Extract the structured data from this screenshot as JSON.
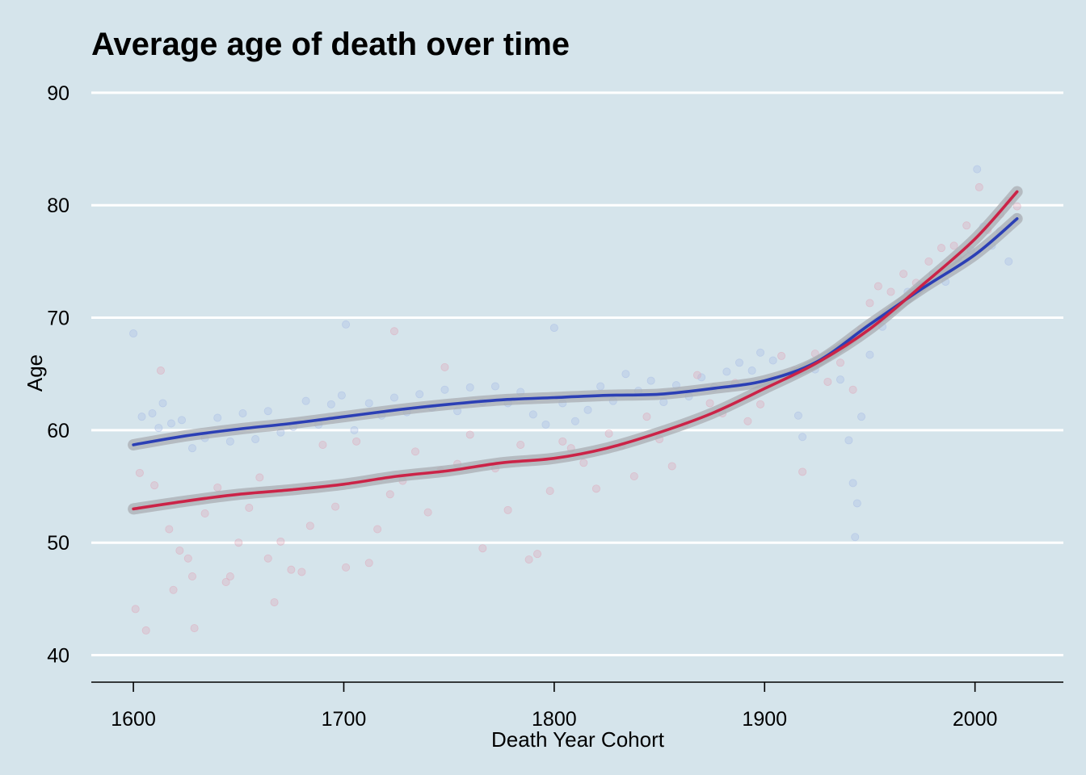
{
  "chart_data": {
    "type": "scatter",
    "title": "Average age of death over time",
    "xlabel": "Death Year Cohort",
    "ylabel": "Age",
    "xlim": [
      1580,
      2042
    ],
    "ylim": [
      37.6,
      92
    ],
    "x_ticks": [
      1600,
      1700,
      1800,
      1900,
      2000
    ],
    "y_ticks": [
      40,
      50,
      60,
      70,
      80,
      90
    ],
    "grid": "horizontal",
    "legend": "none",
    "background_color": "#d5e4eb",
    "series": [
      {
        "color": "#2b3fb5",
        "point_color": "#a9bde6",
        "smooth": [
          [
            1600,
            58.7
          ],
          [
            1625,
            59.5
          ],
          [
            1650,
            60.1
          ],
          [
            1675,
            60.6
          ],
          [
            1700,
            61.2
          ],
          [
            1725,
            61.8
          ],
          [
            1750,
            62.3
          ],
          [
            1775,
            62.7
          ],
          [
            1800,
            62.9
          ],
          [
            1825,
            63.1
          ],
          [
            1850,
            63.2
          ],
          [
            1875,
            63.7
          ],
          [
            1900,
            64.4
          ],
          [
            1925,
            66.1
          ],
          [
            1950,
            69.4
          ],
          [
            1975,
            72.6
          ],
          [
            2000,
            75.6
          ],
          [
            2020,
            78.8
          ]
        ],
        "points": [
          [
            1600,
            68.6
          ],
          [
            1604,
            61.2
          ],
          [
            1609,
            61.5
          ],
          [
            1612,
            60.2
          ],
          [
            1614,
            62.4
          ],
          [
            1618,
            60.6
          ],
          [
            1623,
            60.9
          ],
          [
            1628,
            58.4
          ],
          [
            1634,
            59.3
          ],
          [
            1640,
            61.1
          ],
          [
            1646,
            59.0
          ],
          [
            1652,
            61.5
          ],
          [
            1658,
            59.2
          ],
          [
            1664,
            61.7
          ],
          [
            1670,
            59.8
          ],
          [
            1676,
            60.3
          ],
          [
            1682,
            62.6
          ],
          [
            1688,
            60.5
          ],
          [
            1694,
            62.3
          ],
          [
            1699,
            63.1
          ],
          [
            1701,
            69.4
          ],
          [
            1705,
            60.0
          ],
          [
            1712,
            62.4
          ],
          [
            1718,
            61.3
          ],
          [
            1724,
            62.9
          ],
          [
            1730,
            61.6
          ],
          [
            1736,
            63.2
          ],
          [
            1742,
            62.0
          ],
          [
            1748,
            63.6
          ],
          [
            1754,
            61.7
          ],
          [
            1760,
            63.8
          ],
          [
            1766,
            62.5
          ],
          [
            1772,
            63.9
          ],
          [
            1778,
            62.4
          ],
          [
            1784,
            63.4
          ],
          [
            1790,
            61.4
          ],
          [
            1796,
            60.5
          ],
          [
            1800,
            69.1
          ],
          [
            1804,
            62.4
          ],
          [
            1810,
            60.8
          ],
          [
            1816,
            61.8
          ],
          [
            1822,
            63.9
          ],
          [
            1828,
            62.6
          ],
          [
            1834,
            65.0
          ],
          [
            1840,
            63.5
          ],
          [
            1846,
            64.4
          ],
          [
            1852,
            62.5
          ],
          [
            1858,
            64.0
          ],
          [
            1864,
            63.0
          ],
          [
            1870,
            64.7
          ],
          [
            1876,
            63.8
          ],
          [
            1882,
            65.2
          ],
          [
            1888,
            66.0
          ],
          [
            1894,
            65.3
          ],
          [
            1898,
            66.9
          ],
          [
            1904,
            66.2
          ],
          [
            1910,
            64.8
          ],
          [
            1916,
            61.3
          ],
          [
            1918,
            59.4
          ],
          [
            1924,
            65.4
          ],
          [
            1930,
            66.5
          ],
          [
            1936,
            64.5
          ],
          [
            1940,
            59.1
          ],
          [
            1942,
            55.3
          ],
          [
            1943,
            50.5
          ],
          [
            1944,
            53.5
          ],
          [
            1946,
            61.2
          ],
          [
            1950,
            66.7
          ],
          [
            1956,
            69.2
          ],
          [
            1962,
            70.8
          ],
          [
            1968,
            72.3
          ],
          [
            1974,
            72.9
          ],
          [
            1980,
            73.9
          ],
          [
            1986,
            73.2
          ],
          [
            1992,
            75.3
          ],
          [
            1998,
            76.0
          ],
          [
            2001,
            83.2
          ],
          [
            2004,
            78.1
          ],
          [
            2008,
            76.4
          ],
          [
            2012,
            77.7
          ],
          [
            2016,
            75.0
          ],
          [
            2020,
            78.9
          ]
        ]
      },
      {
        "color": "#cb2347",
        "point_color": "#e0a8b9",
        "smooth": [
          [
            1600,
            53.0
          ],
          [
            1625,
            53.7
          ],
          [
            1650,
            54.3
          ],
          [
            1675,
            54.7
          ],
          [
            1700,
            55.2
          ],
          [
            1725,
            55.9
          ],
          [
            1750,
            56.4
          ],
          [
            1775,
            57.1
          ],
          [
            1800,
            57.5
          ],
          [
            1825,
            58.4
          ],
          [
            1850,
            59.8
          ],
          [
            1875,
            61.5
          ],
          [
            1900,
            63.7
          ],
          [
            1925,
            66.0
          ],
          [
            1950,
            69.0
          ],
          [
            1975,
            72.9
          ],
          [
            2000,
            77.0
          ],
          [
            2020,
            81.2
          ]
        ],
        "points": [
          [
            1601,
            44.1
          ],
          [
            1603,
            56.2
          ],
          [
            1606,
            42.2
          ],
          [
            1610,
            55.1
          ],
          [
            1613,
            65.3
          ],
          [
            1617,
            51.2
          ],
          [
            1619,
            45.8
          ],
          [
            1622,
            49.3
          ],
          [
            1626,
            48.6
          ],
          [
            1628,
            47.0
          ],
          [
            1629,
            42.4
          ],
          [
            1634,
            52.6
          ],
          [
            1640,
            54.9
          ],
          [
            1644,
            46.5
          ],
          [
            1646,
            47.0
          ],
          [
            1650,
            50.0
          ],
          [
            1655,
            53.1
          ],
          [
            1660,
            55.8
          ],
          [
            1664,
            48.6
          ],
          [
            1667,
            44.7
          ],
          [
            1670,
            50.1
          ],
          [
            1675,
            47.6
          ],
          [
            1680,
            47.4
          ],
          [
            1684,
            51.5
          ],
          [
            1690,
            58.7
          ],
          [
            1696,
            53.2
          ],
          [
            1701,
            47.8
          ],
          [
            1706,
            59.0
          ],
          [
            1712,
            48.2
          ],
          [
            1716,
            51.2
          ],
          [
            1722,
            54.3
          ],
          [
            1724,
            68.8
          ],
          [
            1728,
            55.5
          ],
          [
            1734,
            58.1
          ],
          [
            1740,
            52.7
          ],
          [
            1746,
            56.4
          ],
          [
            1748,
            65.6
          ],
          [
            1754,
            57.0
          ],
          [
            1760,
            59.6
          ],
          [
            1766,
            49.5
          ],
          [
            1772,
            56.6
          ],
          [
            1778,
            52.9
          ],
          [
            1784,
            58.7
          ],
          [
            1788,
            48.5
          ],
          [
            1792,
            49.0
          ],
          [
            1798,
            54.6
          ],
          [
            1804,
            59.0
          ],
          [
            1808,
            58.4
          ],
          [
            1814,
            57.1
          ],
          [
            1820,
            54.8
          ],
          [
            1826,
            59.7
          ],
          [
            1832,
            58.6
          ],
          [
            1838,
            55.9
          ],
          [
            1844,
            61.2
          ],
          [
            1850,
            59.2
          ],
          [
            1856,
            56.8
          ],
          [
            1862,
            60.5
          ],
          [
            1868,
            64.9
          ],
          [
            1874,
            62.4
          ],
          [
            1880,
            61.5
          ],
          [
            1886,
            64.2
          ],
          [
            1892,
            60.8
          ],
          [
            1898,
            62.3
          ],
          [
            1904,
            64.5
          ],
          [
            1908,
            66.6
          ],
          [
            1914,
            65.3
          ],
          [
            1918,
            56.3
          ],
          [
            1924,
            66.8
          ],
          [
            1930,
            64.3
          ],
          [
            1936,
            66.0
          ],
          [
            1942,
            63.6
          ],
          [
            1946,
            69.0
          ],
          [
            1950,
            71.3
          ],
          [
            1954,
            72.8
          ],
          [
            1960,
            72.3
          ],
          [
            1966,
            73.9
          ],
          [
            1972,
            73.1
          ],
          [
            1978,
            75.0
          ],
          [
            1984,
            76.2
          ],
          [
            1990,
            76.4
          ],
          [
            1996,
            78.2
          ],
          [
            2002,
            81.6
          ],
          [
            2006,
            77.8
          ],
          [
            2012,
            79.2
          ],
          [
            2016,
            80.4
          ],
          [
            2020,
            79.9
          ]
        ]
      }
    ]
  }
}
